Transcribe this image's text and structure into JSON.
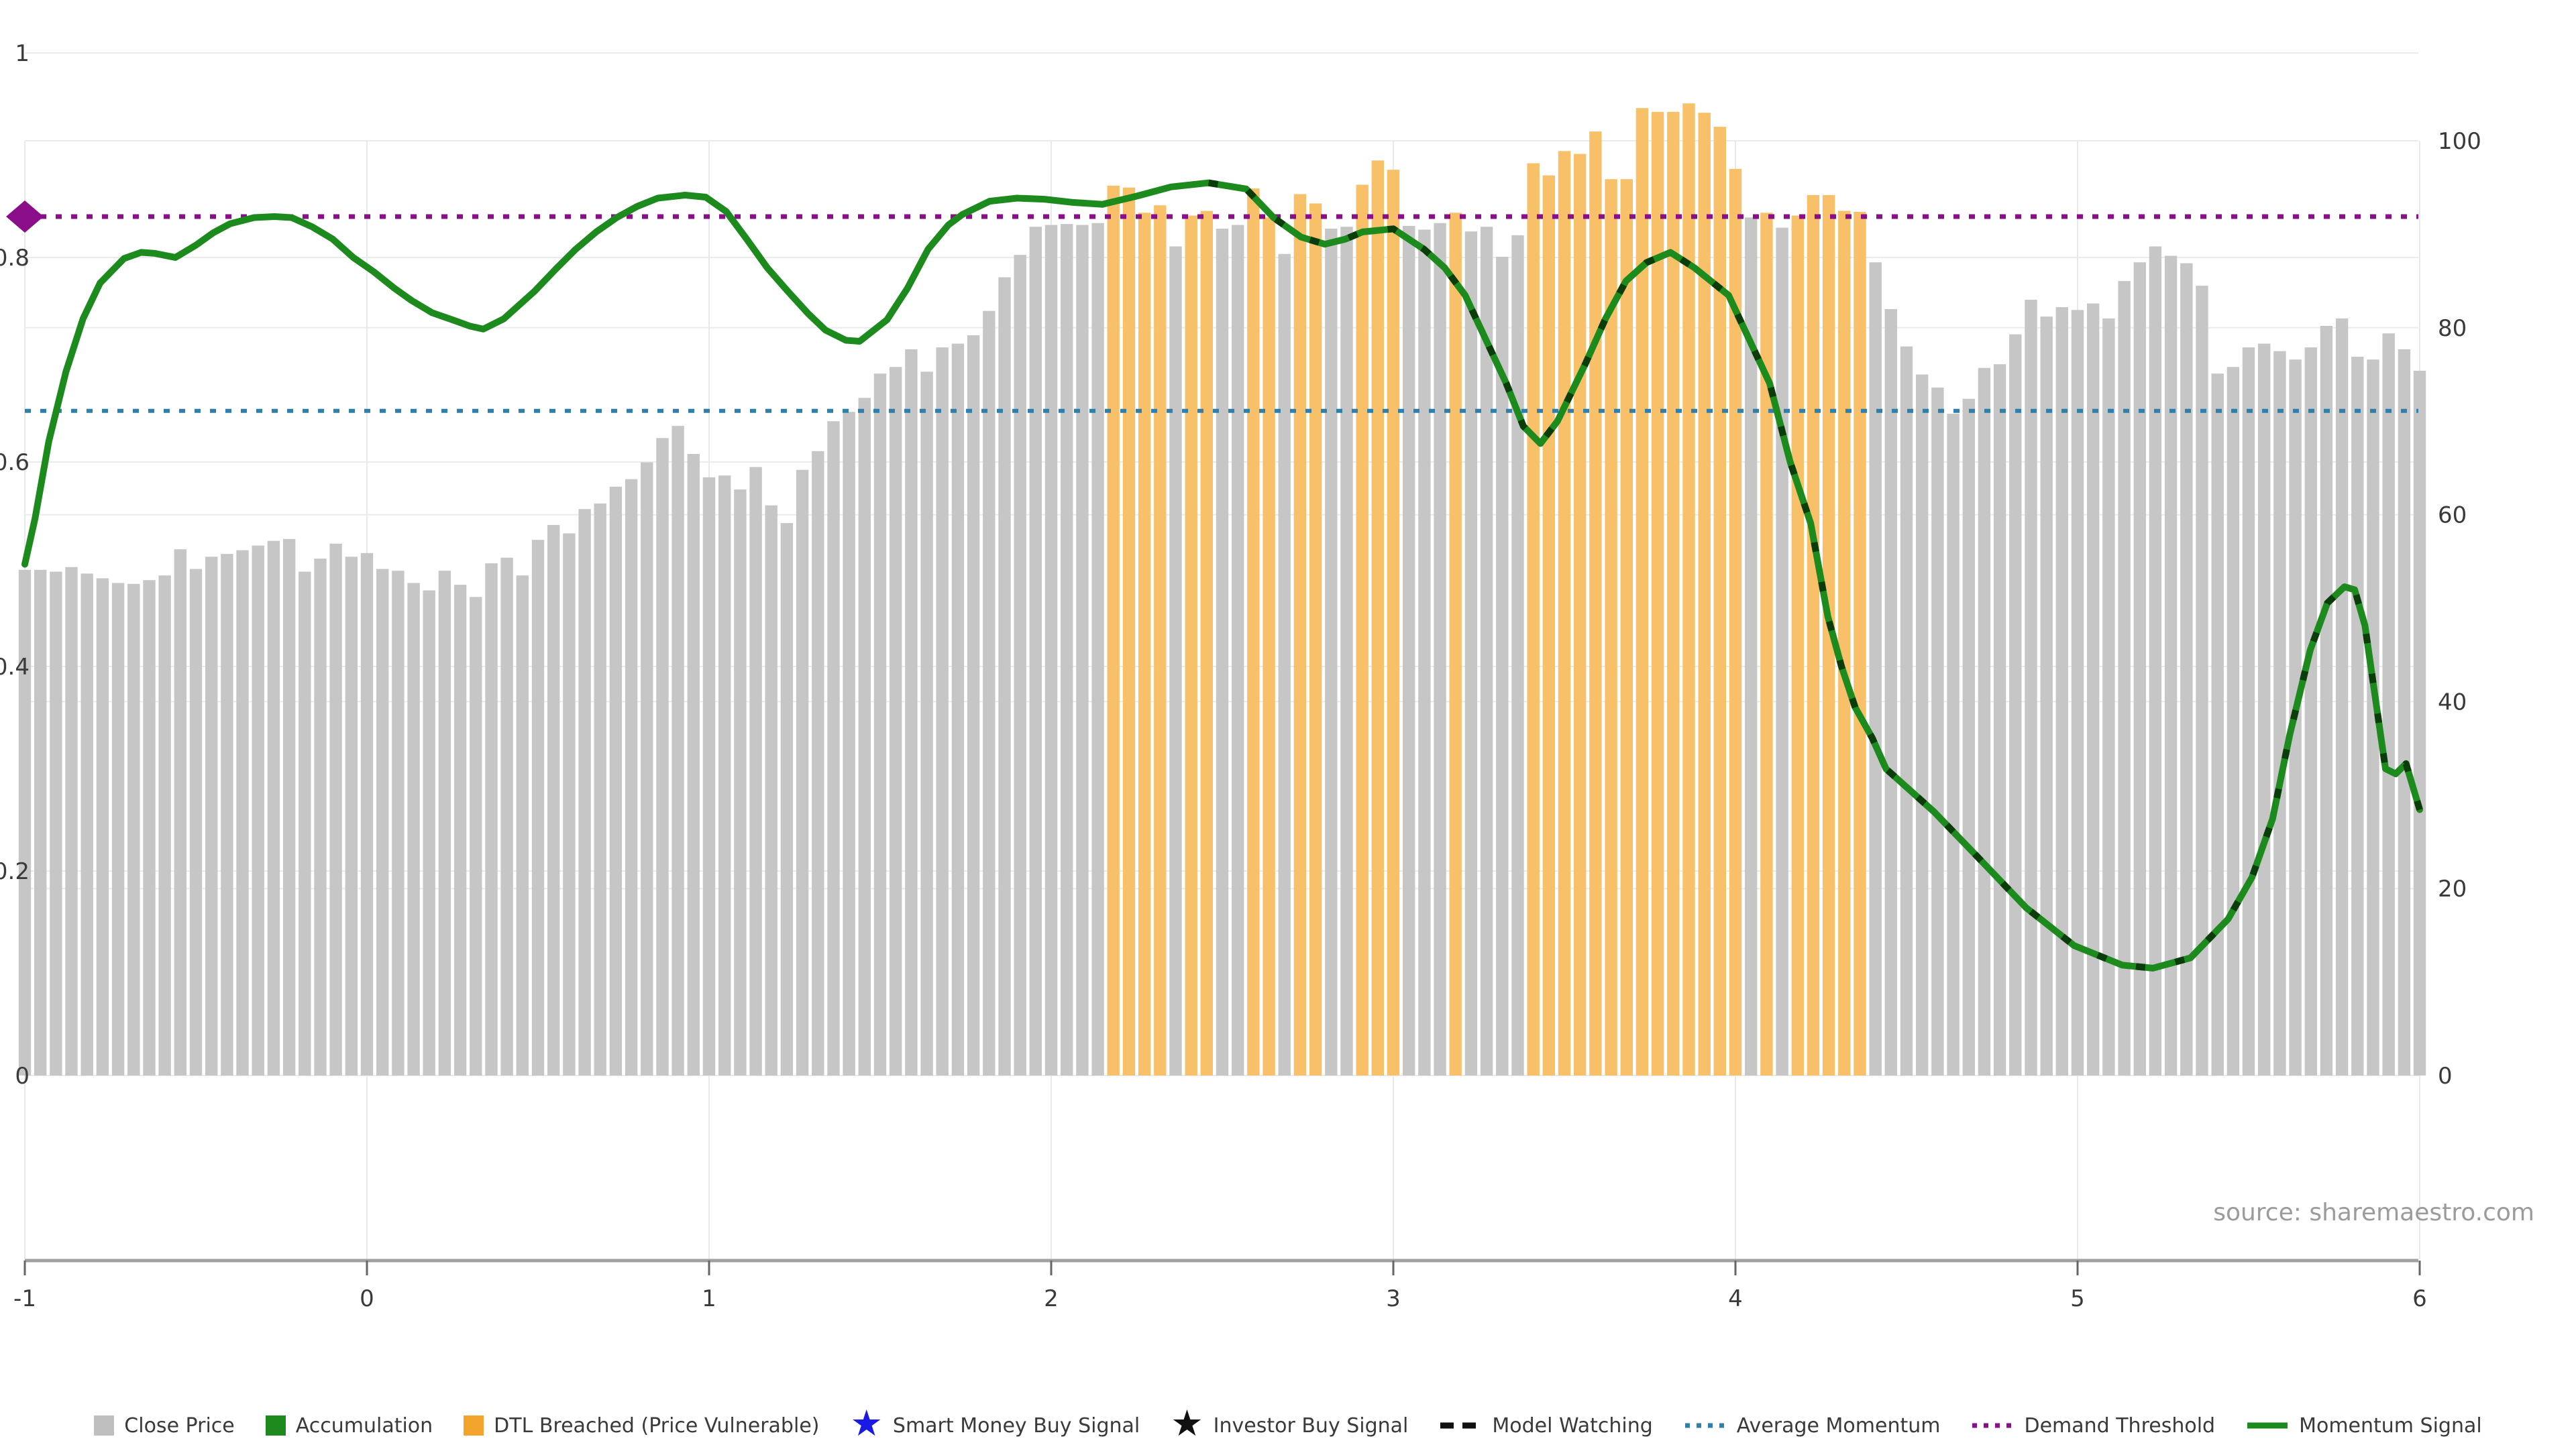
{
  "page": {
    "source_note": "source: sharemaestro.com"
  },
  "colors": {
    "background": "#ffffff",
    "bar_gray": "#c6c6c6",
    "bar_orange": "#f8c069",
    "legend_orange": "#f2a42c",
    "legend_gray": "#bfbfbf",
    "accumulation_green": "#1e8a1e",
    "momentum_green": "#1d8a1d",
    "momentum_dash_overlay": "#0b3d0b",
    "demand_threshold_purple": "#8a0d8a",
    "average_momentum_blue": "#2f7fad",
    "smart_money_blue": "#1a1ae6",
    "investor_black": "#111111",
    "gridline": "#ebebeb",
    "axis_line": "#a0a0a0",
    "tick_text": "#3a3a3a",
    "source_text": "#9b9b9b"
  },
  "axes": {
    "x_ticks": [
      "-1",
      "0",
      "1",
      "2",
      "3",
      "4",
      "5",
      "6"
    ],
    "x_tick_values": [
      -1,
      0,
      1,
      2,
      3,
      4,
      5,
      6
    ],
    "y_left_ticks": [
      "0",
      "0.2",
      "0.4",
      "0.6",
      "0.8",
      "1"
    ],
    "y_left_values": [
      0,
      0.2,
      0.4,
      0.6,
      0.8,
      1
    ],
    "y_right_ticks": [
      "0",
      "20",
      "40",
      "60",
      "80",
      "100"
    ],
    "y_right_values": [
      0,
      20,
      40,
      60,
      80,
      100
    ]
  },
  "legend": [
    {
      "label": "Close Price",
      "marker": "square",
      "color": "#bfbfbf"
    },
    {
      "label": "Accumulation",
      "marker": "square",
      "color": "#1e8a1e"
    },
    {
      "label": "DTL Breached (Price Vulnerable)",
      "marker": "square",
      "color": "#f2a42c"
    },
    {
      "label": "Smart Money Buy Signal",
      "marker": "star",
      "color": "#1a1ae6"
    },
    {
      "label": "Investor Buy Signal",
      "marker": "star",
      "color": "#111111"
    },
    {
      "label": "Model Watching",
      "marker": "dashed-line",
      "color": "#111111"
    },
    {
      "label": "Average Momentum",
      "marker": "dotted-line",
      "color": "#2f7fad"
    },
    {
      "label": "Demand Threshold",
      "marker": "dotted-line",
      "color": "#8a0d8a"
    },
    {
      "label": "Momentum Signal",
      "marker": "solid-line",
      "color": "#1d8a1d"
    }
  ],
  "chart_data": {
    "type": "bar",
    "subtype": "dual-axis bar + line",
    "x_range": [
      -1,
      6
    ],
    "y_left_axis": {
      "range": [
        0,
        1
      ],
      "meaning": "momentum signal scale"
    },
    "y_right_axis": {
      "range": [
        0,
        100
      ],
      "meaning": "close price scale"
    },
    "grid": true,
    "legend_position": "bottom-center",
    "bars": {
      "name": "Close Price",
      "x_start": -1,
      "x_step": 0.045455,
      "values": [
        54.1,
        54.1,
        53.9,
        54.4,
        53.7,
        53.2,
        52.7,
        52.6,
        53,
        53.5,
        56.3,
        54.2,
        55.5,
        55.8,
        56.2,
        56.7,
        57.2,
        57.4,
        53.9,
        55.3,
        56.9,
        55.5,
        55.9,
        54.2,
        54,
        52.7,
        51.9,
        54,
        52.5,
        51.2,
        54.8,
        55.4,
        53.5,
        57.3,
        58.9,
        58,
        60.6,
        61.2,
        63,
        63.8,
        65.6,
        68.2,
        69.5,
        66.5,
        64,
        64.2,
        62.7,
        65.1,
        61,
        59.1,
        64.8,
        66.8,
        70,
        71,
        72.5,
        75.1,
        75.8,
        77.7,
        75.3,
        77.9,
        78.3,
        79.2,
        81.8,
        85.4,
        87.8,
        90.8,
        91,
        91.1,
        91,
        91.2,
        95.2,
        95,
        92.3,
        93.1,
        88.7,
        92,
        92.5,
        90.6,
        91,
        94.9,
        91.8,
        87.9,
        94.3,
        93.3,
        90.6,
        90.8,
        95.3,
        97.9,
        96.9,
        90.9,
        90.5,
        91.2,
        92.3,
        90.3,
        90.8,
        87.6,
        89.9,
        97.6,
        96.3,
        98.9,
        98.6,
        101,
        95.9,
        95.9,
        103.5,
        103.1,
        103.1,
        104,
        103,
        101.5,
        97,
        91.8,
        92.3,
        90.7,
        92,
        94.2,
        94.2,
        92.5,
        92.4,
        87,
        82,
        78,
        75,
        73.6,
        70.8,
        72.4,
        75.7,
        76.1,
        79.3,
        83,
        81.2,
        82.2,
        81.9,
        82.6,
        81,
        85,
        87,
        88.7,
        87.7,
        86.9,
        84.5,
        75.1,
        75.8,
        77.9,
        78.3,
        77.5,
        76.6,
        77.9,
        80.2,
        81,
        76.9,
        76.6,
        79.4,
        77.7,
        75.4
      ],
      "dtl_breached_indices": [
        70,
        71,
        72,
        73,
        75,
        76,
        79,
        80,
        82,
        83,
        86,
        87,
        88,
        92,
        97,
        98,
        99,
        100,
        101,
        102,
        103,
        104,
        105,
        106,
        107,
        108,
        109,
        110,
        112,
        114,
        115,
        116,
        117,
        118
      ]
    },
    "momentum_signal": [
      [
        -1,
        0.5
      ],
      [
        -0.97,
        0.545
      ],
      [
        -0.93,
        0.62
      ],
      [
        -0.88,
        0.688
      ],
      [
        -0.83,
        0.74
      ],
      [
        -0.78,
        0.775
      ],
      [
        -0.71,
        0.799
      ],
      [
        -0.66,
        0.805
      ],
      [
        -0.62,
        0.804
      ],
      [
        -0.56,
        0.8
      ],
      [
        -0.5,
        0.812
      ],
      [
        -0.45,
        0.824
      ],
      [
        -0.4,
        0.833
      ],
      [
        -0.33,
        0.839
      ],
      [
        -0.27,
        0.84
      ],
      [
        -0.22,
        0.839
      ],
      [
        -0.16,
        0.83
      ],
      [
        -0.1,
        0.818
      ],
      [
        -0.04,
        0.8
      ],
      [
        0.02,
        0.786
      ],
      [
        0.08,
        0.77
      ],
      [
        0.13,
        0.758
      ],
      [
        0.19,
        0.746
      ],
      [
        0.25,
        0.739
      ],
      [
        0.3,
        0.733
      ],
      [
        0.34,
        0.73
      ],
      [
        0.4,
        0.74
      ],
      [
        0.49,
        0.767
      ],
      [
        0.55,
        0.788
      ],
      [
        0.61,
        0.808
      ],
      [
        0.67,
        0.825
      ],
      [
        0.73,
        0.839
      ],
      [
        0.79,
        0.85
      ],
      [
        0.85,
        0.858
      ],
      [
        0.93,
        0.861
      ],
      [
        0.99,
        0.859
      ],
      [
        1.05,
        0.845
      ],
      [
        1.11,
        0.818
      ],
      [
        1.17,
        0.79
      ],
      [
        1.23,
        0.767
      ],
      [
        1.29,
        0.745
      ],
      [
        1.34,
        0.729
      ],
      [
        1.4,
        0.719
      ],
      [
        1.44,
        0.718
      ],
      [
        1.52,
        0.739
      ],
      [
        1.58,
        0.77
      ],
      [
        1.64,
        0.808
      ],
      [
        1.7,
        0.832
      ],
      [
        1.74,
        0.842
      ],
      [
        1.82,
        0.855
      ],
      [
        1.9,
        0.858
      ],
      [
        1.98,
        0.857
      ],
      [
        2.06,
        0.854
      ],
      [
        2.15,
        0.852
      ],
      [
        2.25,
        0.86
      ],
      [
        2.35,
        0.869
      ],
      [
        2.46,
        0.873
      ],
      [
        2.57,
        0.867
      ],
      [
        2.65,
        0.839
      ],
      [
        2.73,
        0.82
      ],
      [
        2.8,
        0.813
      ],
      [
        2.86,
        0.818
      ],
      [
        2.91,
        0.825
      ],
      [
        3,
        0.828
      ],
      [
        3.09,
        0.808
      ],
      [
        3.15,
        0.79
      ],
      [
        3.21,
        0.763
      ],
      [
        3.27,
        0.72
      ],
      [
        3.33,
        0.677
      ],
      [
        3.38,
        0.635
      ],
      [
        3.43,
        0.618
      ],
      [
        3.48,
        0.64
      ],
      [
        3.56,
        0.695
      ],
      [
        3.62,
        0.74
      ],
      [
        3.68,
        0.777
      ],
      [
        3.74,
        0.795
      ],
      [
        3.81,
        0.805
      ],
      [
        3.88,
        0.79
      ],
      [
        3.98,
        0.763
      ],
      [
        4.04,
        0.72
      ],
      [
        4.1,
        0.677
      ],
      [
        4.16,
        0.6
      ],
      [
        4.22,
        0.54
      ],
      [
        4.27,
        0.449
      ],
      [
        4.31,
        0.4
      ],
      [
        4.35,
        0.36
      ],
      [
        4.4,
        0.33
      ],
      [
        4.44,
        0.3
      ],
      [
        4.58,
        0.258
      ],
      [
        4.71,
        0.213
      ],
      [
        4.85,
        0.164
      ],
      [
        4.99,
        0.127
      ],
      [
        5.13,
        0.108
      ],
      [
        5.22,
        0.105
      ],
      [
        5.33,
        0.115
      ],
      [
        5.44,
        0.153
      ],
      [
        5.51,
        0.194
      ],
      [
        5.57,
        0.251
      ],
      [
        5.62,
        0.333
      ],
      [
        5.68,
        0.416
      ],
      [
        5.73,
        0.462
      ],
      [
        5.78,
        0.478
      ],
      [
        5.81,
        0.475
      ],
      [
        5.84,
        0.44
      ],
      [
        5.87,
        0.37
      ],
      [
        5.9,
        0.3
      ],
      [
        5.93,
        0.295
      ],
      [
        5.96,
        0.305
      ],
      [
        6,
        0.26
      ]
    ],
    "average_momentum": 0.65,
    "demand_threshold": 0.84,
    "model_watching_x_range": [
      2.46,
      6
    ],
    "demand_marker": {
      "x": -1,
      "y": 0.84,
      "shape": "diamond",
      "color": "#8a0d8a"
    }
  }
}
